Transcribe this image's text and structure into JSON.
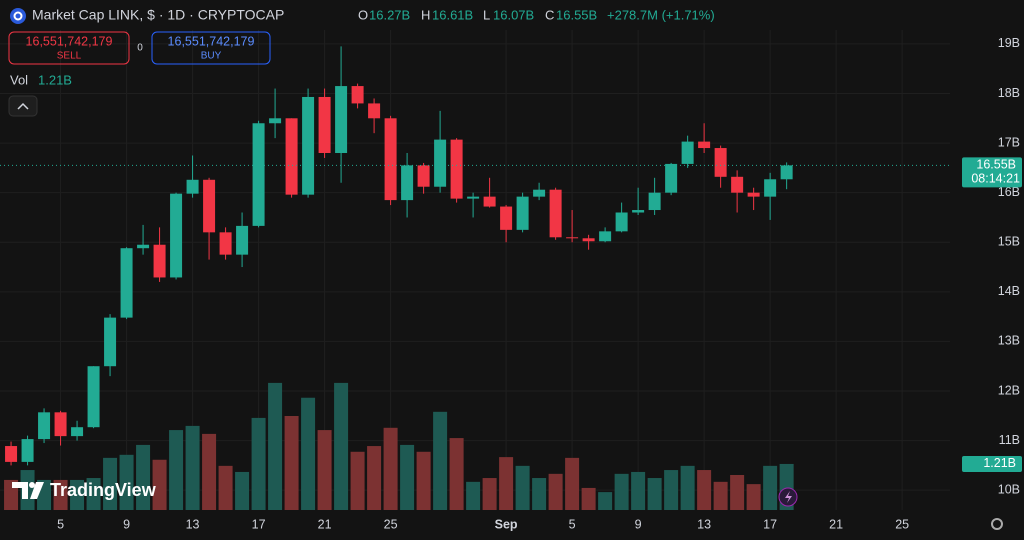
{
  "header": {
    "title": "Market Cap LINK, $ · 1D · CRYPTOCAP",
    "o_label": "O",
    "o_value": "16.27B",
    "h_label": "H",
    "h_value": "16.61B",
    "l_label": "L",
    "l_value": "16.07B",
    "c_label": "C",
    "c_value": "16.55B",
    "change": "+278.7M (+1.71%)"
  },
  "trade": {
    "sell_price": "16,551,742,179",
    "sell": "SELL",
    "spread": "0",
    "buy_price": "16,551,742,179",
    "buy": "BUY"
  },
  "volume_header": {
    "label": "Vol",
    "value": "1.21B"
  },
  "price_tag": {
    "price": "16.55B",
    "countdown": "08:14:21"
  },
  "volume_tag": "1.21B",
  "logo": "TradingView",
  "chart_data": {
    "type": "candlestick",
    "open": [
      10.89,
      10.57,
      11.03,
      11.57,
      11.09,
      11.27,
      12.5,
      13.48,
      14.88,
      14.95,
      14.29,
      15.98,
      16.26,
      15.2,
      14.75,
      15.33,
      17.4,
      17.5,
      15.96,
      17.93,
      16.8,
      18.15,
      17.8,
      17.5,
      15.85,
      16.55,
      16.12,
      17.07,
      15.88,
      15.92,
      15.72,
      15.25,
      15.92,
      16.06,
      15.1,
      15.08,
      15.02,
      15.22,
      15.6,
      15.65,
      16.0,
      16.58,
      17.03,
      16.9,
      16.32,
      16.0,
      15.92,
      16.27
    ],
    "high": [
      10.98,
      11.1,
      11.65,
      11.6,
      11.4,
      12.5,
      13.55,
      14.9,
      15.35,
      15.3,
      16.0,
      16.75,
      16.3,
      15.3,
      15.6,
      17.45,
      18.1,
      17.5,
      18.1,
      18.1,
      18.95,
      18.2,
      17.9,
      17.55,
      16.8,
      16.6,
      17.65,
      17.1,
      16.0,
      16.3,
      15.75,
      16.0,
      16.2,
      16.1,
      15.65,
      15.15,
      15.3,
      15.8,
      16.1,
      16.3,
      16.6,
      17.15,
      17.4,
      16.95,
      16.45,
      16.1,
      16.4,
      16.61
    ],
    "low": [
      10.5,
      10.5,
      10.95,
      10.9,
      11.0,
      11.25,
      12.3,
      13.45,
      14.75,
      14.2,
      14.25,
      15.9,
      14.65,
      14.65,
      14.5,
      15.3,
      17.1,
      15.9,
      15.9,
      16.7,
      16.2,
      17.7,
      17.2,
      15.75,
      15.5,
      15.98,
      16.0,
      15.8,
      15.5,
      15.7,
      15.0,
      15.2,
      15.85,
      15.05,
      15.0,
      14.85,
      15.0,
      15.2,
      15.55,
      15.55,
      15.95,
      16.5,
      16.8,
      16.1,
      15.6,
      15.65,
      15.45,
      16.07
    ],
    "close": [
      10.57,
      11.03,
      11.57,
      11.09,
      11.27,
      12.5,
      13.48,
      14.88,
      14.95,
      14.29,
      15.98,
      16.26,
      15.2,
      14.75,
      15.33,
      17.4,
      17.5,
      15.96,
      17.93,
      16.8,
      18.15,
      17.8,
      17.5,
      15.85,
      16.55,
      16.12,
      17.07,
      15.88,
      15.92,
      15.72,
      15.25,
      15.92,
      16.06,
      15.1,
      15.08,
      15.02,
      15.22,
      15.6,
      15.65,
      16.0,
      16.58,
      17.03,
      16.9,
      16.32,
      16.0,
      15.92,
      16.27,
      16.55
    ],
    "volume": [
      0.79,
      1.05,
      0.79,
      0.79,
      0.79,
      0.84,
      1.37,
      1.45,
      1.71,
      1.32,
      2.1,
      2.21,
      2.0,
      1.16,
      1.0,
      2.42,
      3.34,
      2.47,
      2.95,
      2.1,
      3.34,
      1.53,
      1.68,
      2.16,
      1.71,
      1.53,
      2.58,
      1.89,
      0.74,
      0.84,
      1.39,
      1.16,
      0.84,
      0.95,
      1.37,
      0.58,
      0.47,
      0.95,
      1.0,
      0.84,
      1.05,
      1.16,
      1.05,
      0.74,
      0.92,
      0.68,
      1.16,
      1.21
    ],
    "up_color": "#22ab94",
    "down_color": "#f23645",
    "up_volume_color": "#1e5a53",
    "down_volume_color": "#7c3232",
    "xlim": [
      -0.67,
      56.9
    ],
    "xticks": [
      {
        "value": 3,
        "label": "5"
      },
      {
        "value": 7,
        "label": "9"
      },
      {
        "value": 11,
        "label": "13"
      },
      {
        "value": 15,
        "label": "17"
      },
      {
        "value": 19,
        "label": "21"
      },
      {
        "value": 23,
        "label": "25"
      },
      {
        "value": 30,
        "label": "Sep"
      },
      {
        "value": 34,
        "label": "5"
      },
      {
        "value": 38,
        "label": "9"
      },
      {
        "value": 42,
        "label": "13"
      },
      {
        "value": 46,
        "label": "17"
      },
      {
        "value": 50,
        "label": "21"
      },
      {
        "value": 54,
        "label": "25"
      }
    ],
    "ylim": [
      9.6,
      19.89
    ],
    "yticks": [
      {
        "value": 10,
        "label": "10B"
      },
      {
        "value": 11,
        "label": "11B"
      },
      {
        "value": 12,
        "label": "12B"
      },
      {
        "value": 13,
        "label": "13B"
      },
      {
        "value": 14,
        "label": "14B"
      },
      {
        "value": 15,
        "label": "15B"
      },
      {
        "value": 16,
        "label": "16B"
      },
      {
        "value": 17,
        "label": "17B"
      },
      {
        "value": 18,
        "label": "18B"
      },
      {
        "value": 19,
        "label": "19B"
      }
    ],
    "vlim": [
      0,
      3.6
    ],
    "grid": true
  }
}
